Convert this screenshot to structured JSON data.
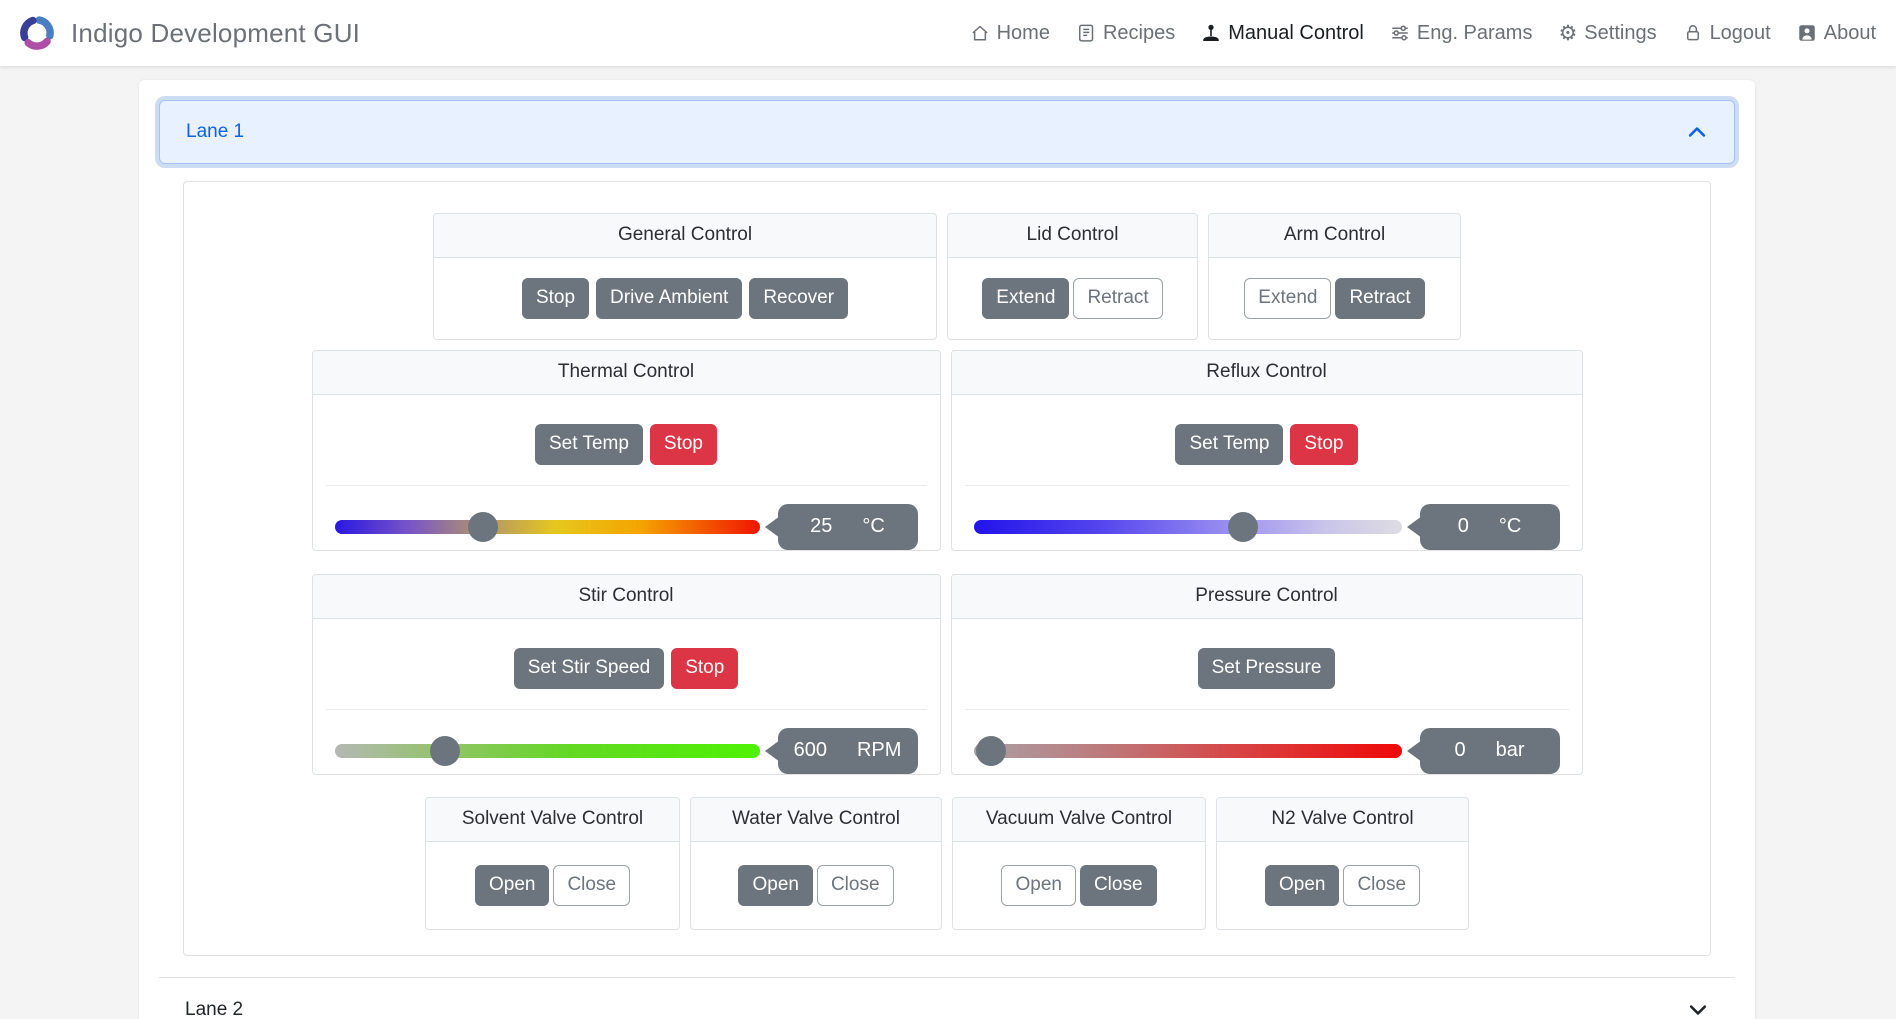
{
  "navbar": {
    "brand": "Indigo Development GUI",
    "items": [
      {
        "label": "Home",
        "icon": "house-icon",
        "active": false
      },
      {
        "label": "Recipes",
        "icon": "journal-icon",
        "active": false
      },
      {
        "label": "Manual Control",
        "icon": "joystick-icon",
        "active": true
      },
      {
        "label": "Eng. Params",
        "icon": "sliders-icon",
        "active": false
      },
      {
        "label": "Settings",
        "icon": "gear-icon",
        "active": false
      },
      {
        "label": "Logout",
        "icon": "lock-icon",
        "active": false
      },
      {
        "label": "About",
        "icon": "person-icon",
        "active": false
      }
    ]
  },
  "lane1": {
    "label": "Lane 1",
    "expanded": true
  },
  "lane2": {
    "label": "Lane 2",
    "expanded": false
  },
  "general": {
    "title": "General Control",
    "stop": "Stop",
    "drive_ambient": "Drive Ambient",
    "recover": "Recover"
  },
  "lid": {
    "title": "Lid Control",
    "extend": "Extend",
    "retract": "Retract"
  },
  "arm": {
    "title": "Arm Control",
    "extend": "Extend",
    "retract": "Retract"
  },
  "thermal": {
    "title": "Thermal Control",
    "set_btn": "Set Temp",
    "stop_btn": "Stop",
    "value": "25",
    "unit": "°C",
    "thumb_pct": 35
  },
  "reflux": {
    "title": "Reflux Control",
    "set_btn": "Set Temp",
    "stop_btn": "Stop",
    "value": "0",
    "unit": "°C",
    "thumb_pct": 63
  },
  "stir": {
    "title": "Stir Control",
    "set_btn": "Set Stir Speed",
    "stop_btn": "Stop",
    "value": "600",
    "unit": "RPM",
    "thumb_pct": 26
  },
  "pressure": {
    "title": "Pressure Control",
    "set_btn": "Set Pressure",
    "value": "0",
    "unit": "bar",
    "thumb_pct": 4
  },
  "valves": [
    {
      "title": "Solvent Valve Control",
      "open": "Open",
      "close": "Close",
      "state": "open"
    },
    {
      "title": "Water Valve Control",
      "open": "Open",
      "close": "Close",
      "state": "open"
    },
    {
      "title": "Vacuum Valve Control",
      "open": "Open",
      "close": "Close",
      "state": "closed"
    },
    {
      "title": "N2 Valve Control",
      "open": "Open",
      "close": "Close",
      "state": "open"
    }
  ],
  "colors": {
    "accent": "#0c63e4",
    "secondary": "#6c757d",
    "danger": "#dc3545",
    "lane_active_bg": "#e7f1ff"
  }
}
